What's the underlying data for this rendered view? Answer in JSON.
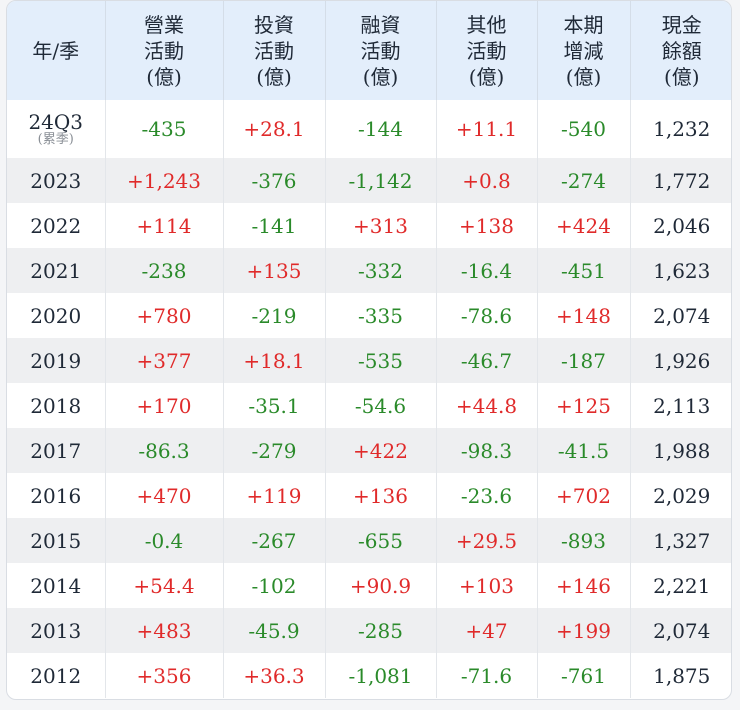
{
  "headers": [
    [
      "年/季"
    ],
    [
      "營業",
      "活動",
      "(億)"
    ],
    [
      "投資",
      "活動",
      "(億)"
    ],
    [
      "融資",
      "活動",
      "(億)"
    ],
    [
      "其他",
      "活動",
      "(億)"
    ],
    [
      "本期",
      "增減",
      "(億)"
    ],
    [
      "現金",
      "餘額",
      "(億)"
    ]
  ],
  "rows": [
    {
      "period": "24Q3",
      "sub": "(累季)",
      "operating": "-435",
      "investing": "+28.1",
      "financing": "-144",
      "other": "+11.1",
      "change": "-540",
      "cash": "1,232"
    },
    {
      "period": "2023",
      "operating": "+1,243",
      "investing": "-376",
      "financing": "-1,142",
      "other": "+0.8",
      "change": "-274",
      "cash": "1,772"
    },
    {
      "period": "2022",
      "operating": "+114",
      "investing": "-141",
      "financing": "+313",
      "other": "+138",
      "change": "+424",
      "cash": "2,046"
    },
    {
      "period": "2021",
      "operating": "-238",
      "investing": "+135",
      "financing": "-332",
      "other": "-16.4",
      "change": "-451",
      "cash": "1,623"
    },
    {
      "period": "2020",
      "operating": "+780",
      "investing": "-219",
      "financing": "-335",
      "other": "-78.6",
      "change": "+148",
      "cash": "2,074"
    },
    {
      "period": "2019",
      "operating": "+377",
      "investing": "+18.1",
      "financing": "-535",
      "other": "-46.7",
      "change": "-187",
      "cash": "1,926"
    },
    {
      "period": "2018",
      "operating": "+170",
      "investing": "-35.1",
      "financing": "-54.6",
      "other": "+44.8",
      "change": "+125",
      "cash": "2,113"
    },
    {
      "period": "2017",
      "operating": "-86.3",
      "investing": "-279",
      "financing": "+422",
      "other": "-98.3",
      "change": "-41.5",
      "cash": "1,988"
    },
    {
      "period": "2016",
      "operating": "+470",
      "investing": "+119",
      "financing": "+136",
      "other": "-23.6",
      "change": "+702",
      "cash": "2,029"
    },
    {
      "period": "2015",
      "operating": "-0.4",
      "investing": "-267",
      "financing": "-655",
      "other": "+29.5",
      "change": "-893",
      "cash": "1,327"
    },
    {
      "period": "2014",
      "operating": "+54.4",
      "investing": "-102",
      "financing": "+90.9",
      "other": "+103",
      "change": "+146",
      "cash": "2,221"
    },
    {
      "period": "2013",
      "operating": "+483",
      "investing": "-45.9",
      "financing": "-285",
      "other": "+47",
      "change": "+199",
      "cash": "2,074"
    },
    {
      "period": "2012",
      "operating": "+356",
      "investing": "+36.3",
      "financing": "-1,081",
      "other": "-71.6",
      "change": "-761",
      "cash": "1,875"
    }
  ],
  "colors": {
    "positive": "#e02a2a",
    "negative": "#2a8a2a",
    "header_bg": "#e3eefb"
  }
}
